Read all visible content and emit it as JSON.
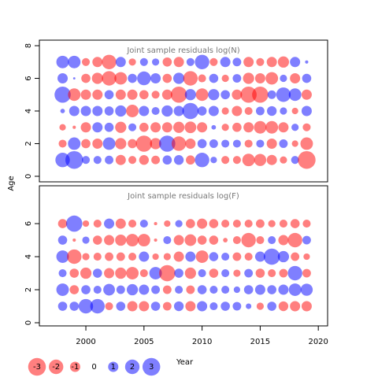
{
  "chart_data": [
    {
      "type": "bubble",
      "title": "Joint sample residuals log(N)",
      "ylabel": "Age",
      "x": [
        1998,
        1999,
        2000,
        2001,
        2002,
        2003,
        2004,
        2005,
        2006,
        2007,
        2008,
        2009,
        2010,
        2011,
        2012,
        2013,
        2014,
        2015,
        2016,
        2017,
        2018,
        2019
      ],
      "ages": [
        1,
        2,
        3,
        4,
        5,
        6,
        7
      ],
      "values": [
        [
          2,
          3,
          0.6,
          0.6,
          0.7,
          -1,
          -0.6,
          -0.9,
          -0.7,
          0.8,
          0.9,
          -0.8,
          2,
          0.4,
          -0.6,
          -0.6,
          -1.5,
          -1.4,
          -1,
          -0.5,
          0.6,
          -3
        ],
        [
          -0.6,
          1.5,
          -0.8,
          -1,
          1.5,
          -1.2,
          -0.8,
          -2.5,
          -1.2,
          2.5,
          -2,
          -1,
          0.8,
          0.7,
          0.6,
          0.6,
          -0.6,
          0.6,
          -1,
          0.7,
          -0.4,
          -1.5
        ],
        [
          -0.4,
          -0.1,
          -1,
          1,
          0.8,
          -1.2,
          0.6,
          -0.8,
          -1,
          -1,
          -1.2,
          -1.3,
          -1,
          0.2,
          -0.5,
          -0.8,
          -1,
          -1.5,
          -1.5,
          -1,
          0.5,
          -0.6
        ],
        [
          0.2,
          1,
          1,
          1,
          0.8,
          1.2,
          -1.5,
          1,
          0.6,
          1.2,
          1,
          2.5,
          0.8,
          1,
          -0.5,
          -1,
          -0.6,
          0.7,
          0.9,
          0.5,
          -0.4,
          1
        ],
        [
          2.5,
          -1.5,
          -1,
          -1,
          0.8,
          -1,
          -1,
          -0.8,
          -0.6,
          -1,
          -2.5,
          1.2,
          -1.5,
          1.2,
          0.8,
          -1,
          -2.5,
          -2.5,
          0.7,
          2,
          1.5,
          -1
        ],
        [
          1,
          0.05,
          -0.8,
          -1.2,
          -2,
          -1.5,
          0.8,
          1.8,
          1,
          -0.8,
          1.2,
          -2,
          -0.6,
          0.8,
          -0.5,
          0.7,
          -1.2,
          -1,
          -1.5,
          0.5,
          -1,
          0.8
        ],
        [
          1.5,
          1.5,
          -0.6,
          -1,
          -2,
          1,
          -0.5,
          0.6,
          0.5,
          -0.8,
          -1,
          0.6,
          2,
          -0.6,
          1,
          0.7,
          -1,
          -0.6,
          -1,
          -1.2,
          1,
          0.1
        ]
      ],
      "xlim": [
        1996,
        2020.8
      ],
      "ylim": [
        -0.34,
        8.34
      ],
      "yticks": [
        0,
        2,
        4,
        6,
        8
      ],
      "positive_color": "#0000ff",
      "negative_color": "#ff0000"
    },
    {
      "type": "bubble",
      "title": "Joint sample residuals log(F)",
      "xlabel": "Year",
      "x": [
        1998,
        1999,
        2000,
        2001,
        2002,
        2003,
        2004,
        2005,
        2006,
        2007,
        2008,
        2009,
        2010,
        2011,
        2012,
        2013,
        2014,
        2015,
        2016,
        2017,
        2018,
        2019
      ],
      "ages": [
        1,
        2,
        3,
        4,
        5,
        6
      ],
      "values": [
        [
          0.8,
          0.8,
          2,
          2,
          -0.6,
          0.8,
          -1,
          -1,
          0.8,
          -0.7,
          0.9,
          -1,
          1,
          0.6,
          0.8,
          0.7,
          0.3,
          -0.5,
          0.8,
          -0.9,
          -1,
          -1
        ],
        [
          1.5,
          -0.8,
          0.8,
          0.6,
          1.3,
          0.7,
          1.2,
          1,
          0.7,
          -0.7,
          0.6,
          -0.7,
          0.8,
          0.6,
          0.6,
          0.4,
          0.8,
          1,
          0.8,
          1,
          1.5,
          1.4
        ],
        [
          0.6,
          -0.8,
          -1.2,
          0.8,
          -1,
          -1.2,
          -1.5,
          -0.6,
          1.5,
          -2.5,
          0.8,
          -1.2,
          0.6,
          -0.8,
          0.6,
          -0.5,
          0.7,
          -0.8,
          -0.6,
          -0.7,
          2,
          -0.7
        ],
        [
          1.5,
          -2,
          -0.5,
          -0.6,
          -0.7,
          -0.7,
          -0.6,
          1,
          -0.4,
          -0.5,
          -1,
          1,
          -1.5,
          0.8,
          0.6,
          -0.7,
          -0.6,
          1,
          2.5,
          1.2,
          -0.7,
          -0.4
        ],
        [
          0.8,
          -0.1,
          0.5,
          -0.8,
          -1,
          -1.2,
          -1.5,
          -1.5,
          -0.1,
          0.6,
          -1,
          -1.3,
          -0.8,
          -0.8,
          -0.2,
          -0.6,
          -2,
          -0.6,
          0.6,
          -1,
          -2,
          0.7
        ],
        [
          -0.8,
          2.5,
          -0.4,
          -0.6,
          1,
          -1,
          -0.6,
          0.6,
          -0.1,
          -0.4,
          0.5,
          -0.8,
          -1,
          -0.8,
          -0.6,
          -0.6,
          -0.6,
          -0.7,
          -0.5,
          -0.6,
          -0.8,
          -0.6
        ]
      ],
      "xlim": [
        1996,
        2020.8
      ],
      "ylim": [
        -0.19,
        8.29
      ],
      "xticks": [
        2000,
        2005,
        2010,
        2015,
        2020
      ],
      "yticks": [
        0,
        2,
        4,
        6
      ],
      "size_legend": [
        -3,
        -2,
        -1,
        0,
        1,
        2,
        3
      ],
      "positive_color": "#0000ff",
      "negative_color": "#ff0000"
    }
  ]
}
